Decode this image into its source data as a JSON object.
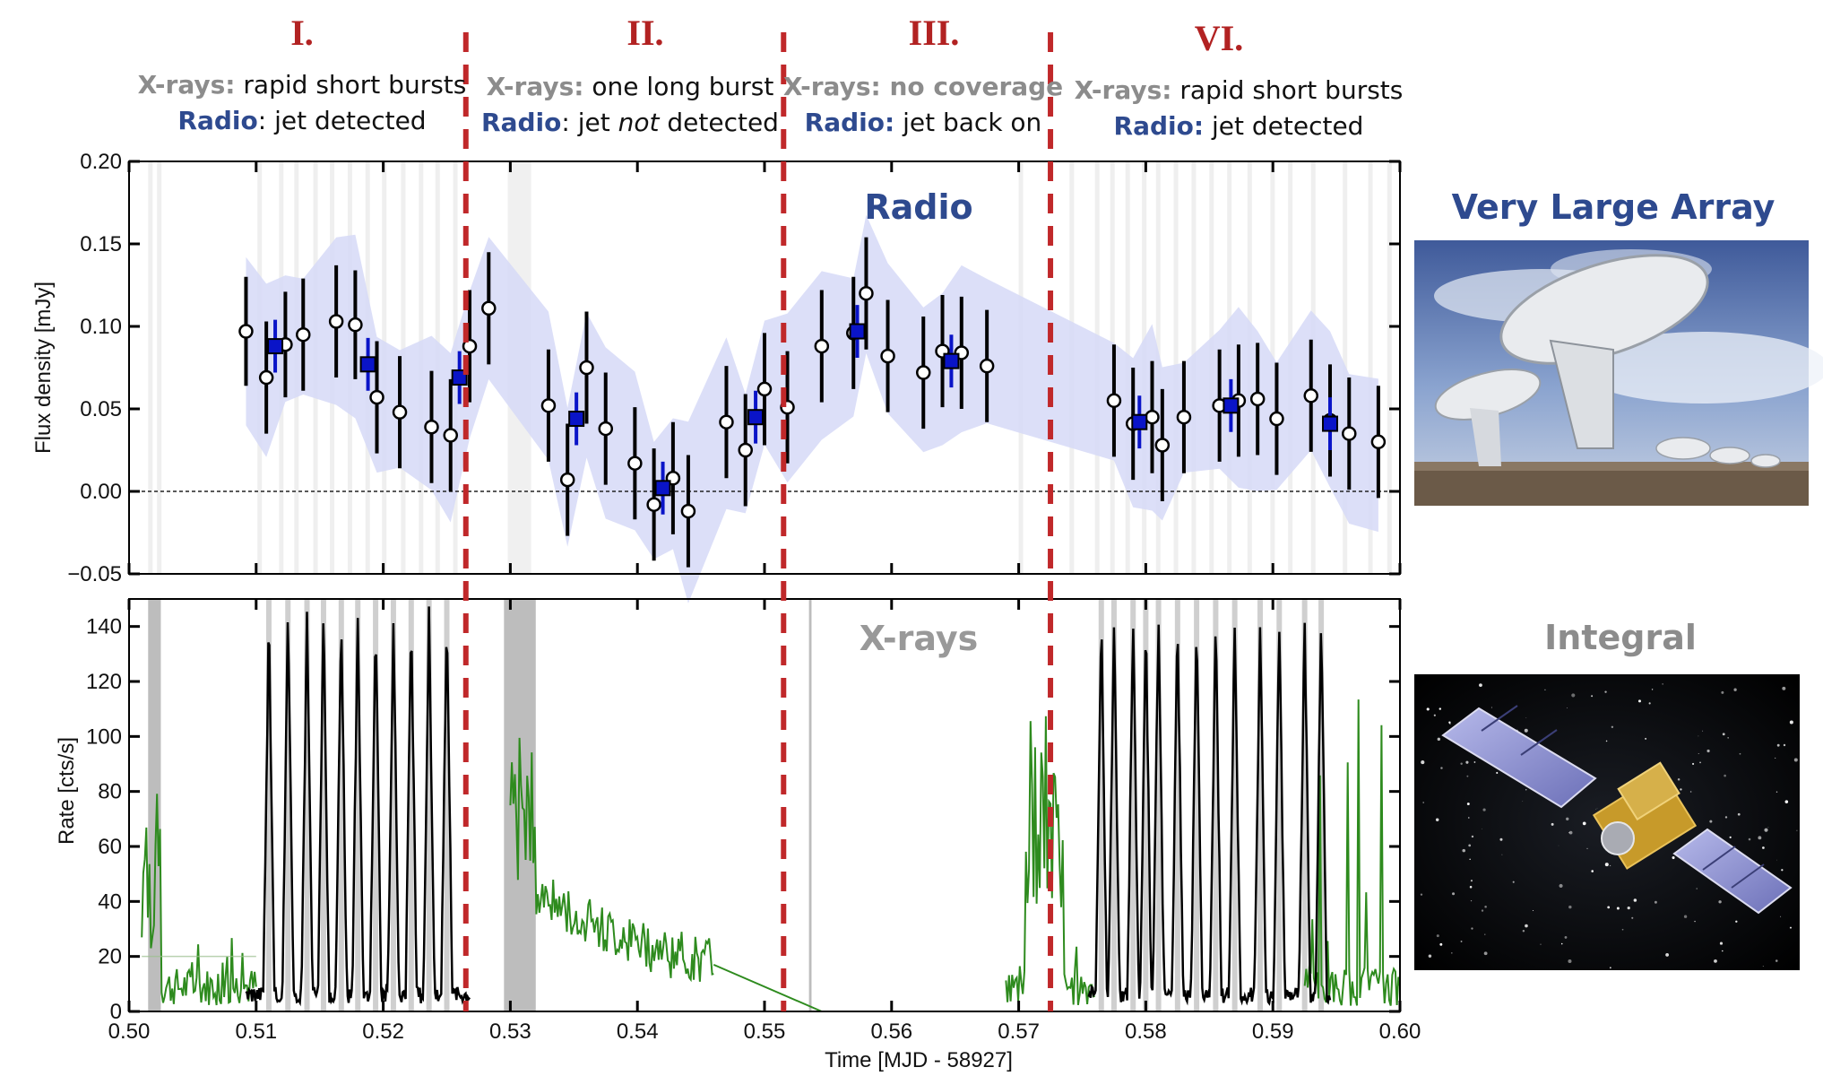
{
  "phases": [
    {
      "numeral": "I.",
      "xray_label": "X-rays:",
      "xray_text": " rapid short bursts",
      "radio_label": "Radio",
      "radio_text": ": jet detected",
      "radio_emph": "",
      "radio_tail": ""
    },
    {
      "numeral": "II.",
      "xray_label": "X-rays:",
      "xray_text": " one long burst",
      "radio_label": "Radio",
      "radio_text": ": jet ",
      "radio_emph": "not",
      "radio_tail": " detected"
    },
    {
      "numeral": "III.",
      "xray_label": "X-rays: no coverage",
      "xray_text": "",
      "radio_label": "Radio:",
      "radio_text": " jet back on",
      "radio_emph": "",
      "radio_tail": ""
    },
    {
      "numeral": "VI.",
      "xray_label": "X-rays:",
      "xray_text": " rapid short bursts",
      "radio_label": "Radio:",
      "radio_text": " jet detected",
      "radio_emph": "",
      "radio_tail": ""
    }
  ],
  "phase_boundaries": [
    0.5265,
    0.5515,
    0.5725
  ],
  "labels": {
    "radio_panel": "Radio",
    "xray_panel": "X-rays",
    "vla": "Very Large Array",
    "integral": "Integral",
    "xlabel": "Time [MJD - 58927]",
    "ylabel_radio": "Flux density [mJy]",
    "ylabel_xray": "Rate [cts/s]"
  },
  "colors": {
    "phase_line": "#c0282a",
    "radio_band": "#d6d9f7",
    "binned": "#0a14c8",
    "xray_black": "#000000",
    "xray_green": "#2e8b1e",
    "gap_grey": "#bdbdbd"
  },
  "chart_data": [
    {
      "type": "scatter",
      "title": "Radio",
      "xlabel": "",
      "ylabel": "Flux density [mJy]",
      "xlim": [
        0.5,
        0.6
      ],
      "ylim": [
        -0.05,
        0.2
      ],
      "xticks": [
        0.5,
        0.51,
        0.52,
        0.53,
        0.54,
        0.55,
        0.56,
        0.57,
        0.58,
        0.59,
        0.6
      ],
      "yticks": [
        "-0.05",
        "0.00",
        "0.05",
        "0.10",
        "0.15",
        "0.20"
      ],
      "reference_line": 0.0,
      "points": [
        {
          "x": 0.5092,
          "y": 0.097,
          "err": 0.033
        },
        {
          "x": 0.5108,
          "y": 0.069,
          "err": 0.034
        },
        {
          "x": 0.5123,
          "y": 0.089,
          "err": 0.032
        },
        {
          "x": 0.5137,
          "y": 0.095,
          "err": 0.034
        },
        {
          "x": 0.5163,
          "y": 0.103,
          "err": 0.034
        },
        {
          "x": 0.5178,
          "y": 0.101,
          "err": 0.033
        },
        {
          "x": 0.5195,
          "y": 0.057,
          "err": 0.034
        },
        {
          "x": 0.5213,
          "y": 0.048,
          "err": 0.034
        },
        {
          "x": 0.5238,
          "y": 0.039,
          "err": 0.034
        },
        {
          "x": 0.5253,
          "y": 0.034,
          "err": 0.034
        },
        {
          "x": 0.5268,
          "y": 0.088,
          "err": 0.034
        },
        {
          "x": 0.5283,
          "y": 0.111,
          "err": 0.034
        },
        {
          "x": 0.533,
          "y": 0.052,
          "err": 0.034
        },
        {
          "x": 0.5345,
          "y": 0.007,
          "err": 0.034
        },
        {
          "x": 0.536,
          "y": 0.075,
          "err": 0.034
        },
        {
          "x": 0.5375,
          "y": 0.038,
          "err": 0.034
        },
        {
          "x": 0.5398,
          "y": 0.017,
          "err": 0.034
        },
        {
          "x": 0.5413,
          "y": -0.008,
          "err": 0.034
        },
        {
          "x": 0.5428,
          "y": 0.008,
          "err": 0.034
        },
        {
          "x": 0.544,
          "y": -0.012,
          "err": 0.034
        },
        {
          "x": 0.547,
          "y": 0.042,
          "err": 0.034
        },
        {
          "x": 0.5485,
          "y": 0.025,
          "err": 0.034
        },
        {
          "x": 0.55,
          "y": 0.062,
          "err": 0.034
        },
        {
          "x": 0.5518,
          "y": 0.051,
          "err": 0.034
        },
        {
          "x": 0.5545,
          "y": 0.088,
          "err": 0.034
        },
        {
          "x": 0.557,
          "y": 0.096,
          "err": 0.034
        },
        {
          "x": 0.558,
          "y": 0.12,
          "err": 0.034
        },
        {
          "x": 0.5597,
          "y": 0.082,
          "err": 0.034
        },
        {
          "x": 0.5625,
          "y": 0.072,
          "err": 0.034
        },
        {
          "x": 0.564,
          "y": 0.085,
          "err": 0.034
        },
        {
          "x": 0.5655,
          "y": 0.084,
          "err": 0.034
        },
        {
          "x": 0.5675,
          "y": 0.076,
          "err": 0.034
        },
        {
          "x": 0.5775,
          "y": 0.055,
          "err": 0.034
        },
        {
          "x": 0.579,
          "y": 0.041,
          "err": 0.034
        },
        {
          "x": 0.5805,
          "y": 0.045,
          "err": 0.034
        },
        {
          "x": 0.5813,
          "y": 0.028,
          "err": 0.034
        },
        {
          "x": 0.583,
          "y": 0.045,
          "err": 0.034
        },
        {
          "x": 0.5858,
          "y": 0.052,
          "err": 0.034
        },
        {
          "x": 0.5873,
          "y": 0.055,
          "err": 0.034
        },
        {
          "x": 0.5888,
          "y": 0.056,
          "err": 0.034
        },
        {
          "x": 0.5903,
          "y": 0.044,
          "err": 0.034
        },
        {
          "x": 0.593,
          "y": 0.058,
          "err": 0.034
        },
        {
          "x": 0.5945,
          "y": 0.043,
          "err": 0.034
        },
        {
          "x": 0.596,
          "y": 0.035,
          "err": 0.034
        },
        {
          "x": 0.5983,
          "y": 0.03,
          "err": 0.034
        }
      ],
      "binned_points": [
        {
          "x": 0.5115,
          "y": 0.088,
          "err": 0.016
        },
        {
          "x": 0.5188,
          "y": 0.077,
          "err": 0.016
        },
        {
          "x": 0.526,
          "y": 0.069,
          "err": 0.016
        },
        {
          "x": 0.5352,
          "y": 0.044,
          "err": 0.016
        },
        {
          "x": 0.542,
          "y": 0.002,
          "err": 0.016
        },
        {
          "x": 0.5493,
          "y": 0.045,
          "err": 0.016
        },
        {
          "x": 0.5573,
          "y": 0.097,
          "err": 0.016
        },
        {
          "x": 0.5647,
          "y": 0.079,
          "err": 0.016
        },
        {
          "x": 0.5795,
          "y": 0.042,
          "err": 0.016
        },
        {
          "x": 0.5867,
          "y": 0.052,
          "err": 0.016
        },
        {
          "x": 0.5945,
          "y": 0.041,
          "err": 0.016
        }
      ]
    },
    {
      "type": "line",
      "title": "X-rays",
      "xlabel": "Time [MJD - 58927]",
      "ylabel": "Rate [cts/s]",
      "xlim": [
        0.5,
        0.6
      ],
      "ylim": [
        0,
        150
      ],
      "xticks": [
        "0.50",
        "0.51",
        "0.52",
        "0.53",
        "0.54",
        "0.55",
        "0.56",
        "0.57",
        "0.58",
        "0.59",
        "0.60"
      ],
      "yticks": [
        "0",
        "20",
        "40",
        "60",
        "80",
        "100",
        "120",
        "140"
      ],
      "bursts_phase_I": [
        0.511,
        0.5125,
        0.514,
        0.5153,
        0.5167,
        0.518,
        0.5194,
        0.5208,
        0.5222,
        0.5236,
        0.525
      ],
      "bursts_phase_VI": [
        0.5765,
        0.5775,
        0.579,
        0.58,
        0.581,
        0.5825,
        0.584,
        0.5855,
        0.587,
        0.589,
        0.5905,
        0.5925,
        0.5938
      ],
      "green_segments": [
        [
          0.501,
          0.51
        ],
        [
          0.53,
          0.546
        ],
        [
          0.569,
          0.576
        ],
        [
          0.5925,
          0.6
        ]
      ],
      "long_burst_peak": [
        0.531,
        100
      ],
      "gap_bands": [
        [
          0.5015,
          0.5025
        ],
        [
          0.5295,
          0.532
        ],
        [
          0.5535,
          0.5537
        ]
      ]
    }
  ]
}
